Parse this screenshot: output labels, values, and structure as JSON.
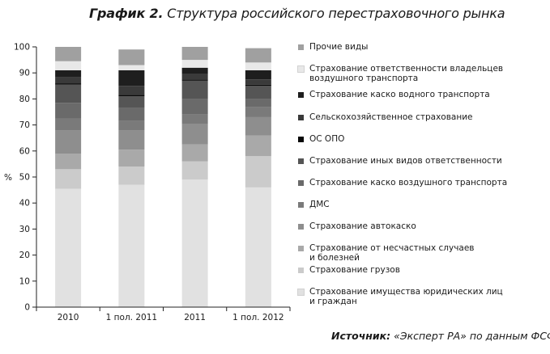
{
  "header": {
    "title_bold": "График 2.",
    "title_rest": " Структура российского перестраховочного рынка"
  },
  "footer": {
    "source_bold": "Источник:",
    "source_rest": " «Эксперт РА» по данным ФСФР"
  },
  "chart_data": {
    "type": "bar",
    "stacked": true,
    "ylabel": "%",
    "ylim": [
      0,
      100
    ],
    "yticks": [
      0,
      10,
      20,
      30,
      40,
      50,
      60,
      70,
      80,
      90,
      100
    ],
    "grid": false,
    "legend_position": "right",
    "categories": [
      "2010",
      "1 пол. 2011",
      "2011",
      "1 пол. 2012"
    ],
    "series": [
      {
        "name": "Страхование имущества юридических лиц\nи граждан",
        "color": "#e1e1e1",
        "values": [
          45.5,
          47,
          49,
          46
        ]
      },
      {
        "name": "Страхование грузов",
        "color": "#cbcbcb",
        "values": [
          7.5,
          7,
          7,
          12
        ]
      },
      {
        "name": "Страхование от несчастных случаев\nи болезней",
        "color": "#a9a9a9",
        "values": [
          6,
          6.5,
          6.5,
          8
        ]
      },
      {
        "name": "Страхование автокаско",
        "color": "#8e8e8e",
        "values": [
          9,
          7.5,
          8,
          7
        ]
      },
      {
        "name": "ДМС",
        "color": "#7a7a7a",
        "values": [
          4.5,
          3.5,
          3.5,
          4
        ]
      },
      {
        "name": "Страхование каско воздушного транспорта",
        "color": "#6a6a6a",
        "values": [
          6,
          5,
          6,
          3
        ]
      },
      {
        "name": "Страхование иных видов ответственности",
        "color": "#555555",
        "values": [
          7,
          4.5,
          7,
          5
        ]
      },
      {
        "name": "ОС ОПО",
        "color": "#080808",
        "values": [
          0.5,
          0.5,
          0.5,
          0.5
        ]
      },
      {
        "name": "Сельскохозяйственное страхование",
        "color": "#3a3a3a",
        "values": [
          2.5,
          3.5,
          2,
          2
        ]
      },
      {
        "name": "Страхование каско водного транспорта",
        "color": "#1e1e1e",
        "values": [
          2.5,
          6,
          2.5,
          3.5
        ]
      },
      {
        "name": "Страхование ответственности владельцев\nвоздушного транспорта",
        "color": "#e8e8e8",
        "values": [
          3.5,
          2,
          3,
          3
        ]
      },
      {
        "name": "Прочие виды",
        "color": "#a0a0a0",
        "values": [
          5.5,
          6,
          5,
          5.5
        ]
      }
    ]
  }
}
